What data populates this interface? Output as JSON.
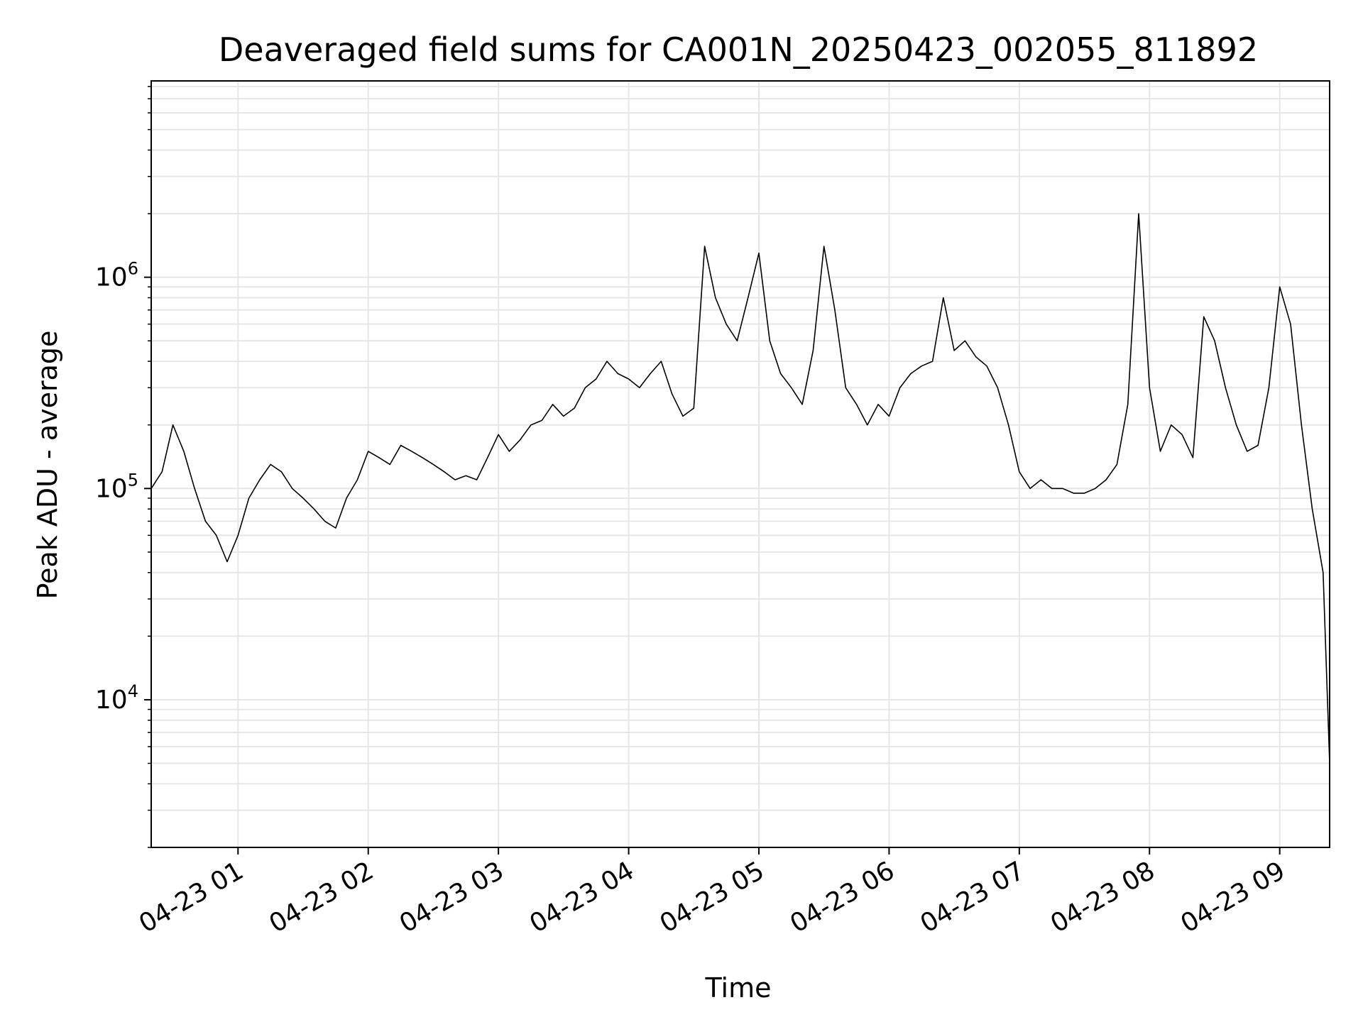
{
  "chart_data": {
    "type": "line",
    "title": "Deaveraged field sums for CA001N_20250423_002055_811892",
    "xlabel": "Time",
    "ylabel": "Peak ADU - average",
    "x_scale": "time",
    "y_scale": "log",
    "xlim": [
      "2025-04-23 00:20",
      "2025-04-23 09:23"
    ],
    "ylim": [
      2000,
      8500000
    ],
    "grid": true,
    "grid_minor": true,
    "line_color": "#000000",
    "grid_color": "#e6e6e6",
    "x_ticks": [
      {
        "value": "2025-04-23 01:00",
        "label": "04-23 01"
      },
      {
        "value": "2025-04-23 02:00",
        "label": "04-23 02"
      },
      {
        "value": "2025-04-23 03:00",
        "label": "04-23 03"
      },
      {
        "value": "2025-04-23 04:00",
        "label": "04-23 04"
      },
      {
        "value": "2025-04-23 05:00",
        "label": "04-23 05"
      },
      {
        "value": "2025-04-23 06:00",
        "label": "04-23 06"
      },
      {
        "value": "2025-04-23 07:00",
        "label": "04-23 07"
      },
      {
        "value": "2025-04-23 08:00",
        "label": "04-23 08"
      },
      {
        "value": "2025-04-23 09:00",
        "label": "04-23 09"
      }
    ],
    "y_ticks": [
      {
        "value": 10000,
        "base": "10",
        "exp": "4"
      },
      {
        "value": 100000,
        "base": "10",
        "exp": "5"
      },
      {
        "value": 1000000,
        "base": "10",
        "exp": "6"
      }
    ],
    "series": [
      {
        "x": [
          "2025-04-23 00:20",
          "2025-04-23 00:25",
          "2025-04-23 00:30",
          "2025-04-23 00:35",
          "2025-04-23 00:40",
          "2025-04-23 00:45",
          "2025-04-23 00:50",
          "2025-04-23 00:55",
          "2025-04-23 01:00",
          "2025-04-23 01:05",
          "2025-04-23 01:10",
          "2025-04-23 01:15",
          "2025-04-23 01:20",
          "2025-04-23 01:25",
          "2025-04-23 01:30",
          "2025-04-23 01:35",
          "2025-04-23 01:40",
          "2025-04-23 01:45",
          "2025-04-23 01:50",
          "2025-04-23 01:55",
          "2025-04-23 02:00",
          "2025-04-23 02:05",
          "2025-04-23 02:10",
          "2025-04-23 02:15",
          "2025-04-23 02:20",
          "2025-04-23 02:25",
          "2025-04-23 02:30",
          "2025-04-23 02:35",
          "2025-04-23 02:40",
          "2025-04-23 02:45",
          "2025-04-23 02:50",
          "2025-04-23 02:55",
          "2025-04-23 03:00",
          "2025-04-23 03:05",
          "2025-04-23 03:10",
          "2025-04-23 03:15",
          "2025-04-23 03:20",
          "2025-04-23 03:25",
          "2025-04-23 03:30",
          "2025-04-23 03:35",
          "2025-04-23 03:40",
          "2025-04-23 03:45",
          "2025-04-23 03:50",
          "2025-04-23 03:55",
          "2025-04-23 04:00",
          "2025-04-23 04:05",
          "2025-04-23 04:10",
          "2025-04-23 04:15",
          "2025-04-23 04:20",
          "2025-04-23 04:25",
          "2025-04-23 04:30",
          "2025-04-23 04:35",
          "2025-04-23 04:40",
          "2025-04-23 04:45",
          "2025-04-23 04:50",
          "2025-04-23 04:55",
          "2025-04-23 05:00",
          "2025-04-23 05:05",
          "2025-04-23 05:10",
          "2025-04-23 05:15",
          "2025-04-23 05:20",
          "2025-04-23 05:25",
          "2025-04-23 05:30",
          "2025-04-23 05:35",
          "2025-04-23 05:40",
          "2025-04-23 05:45",
          "2025-04-23 05:50",
          "2025-04-23 05:55",
          "2025-04-23 06:00",
          "2025-04-23 06:05",
          "2025-04-23 06:10",
          "2025-04-23 06:15",
          "2025-04-23 06:20",
          "2025-04-23 06:25",
          "2025-04-23 06:30",
          "2025-04-23 06:35",
          "2025-04-23 06:40",
          "2025-04-23 06:45",
          "2025-04-23 06:50",
          "2025-04-23 06:55",
          "2025-04-23 07:00",
          "2025-04-23 07:05",
          "2025-04-23 07:10",
          "2025-04-23 07:15",
          "2025-04-23 07:20",
          "2025-04-23 07:25",
          "2025-04-23 07:30",
          "2025-04-23 07:35",
          "2025-04-23 07:40",
          "2025-04-23 07:45",
          "2025-04-23 07:50",
          "2025-04-23 07:55",
          "2025-04-23 08:00",
          "2025-04-23 08:05",
          "2025-04-23 08:10",
          "2025-04-23 08:15",
          "2025-04-23 08:20",
          "2025-04-23 08:25",
          "2025-04-23 08:30",
          "2025-04-23 08:35",
          "2025-04-23 08:40",
          "2025-04-23 08:45",
          "2025-04-23 08:50",
          "2025-04-23 08:55",
          "2025-04-23 09:00",
          "2025-04-23 09:05",
          "2025-04-23 09:10",
          "2025-04-23 09:15",
          "2025-04-23 09:20",
          "2025-04-23 09:23"
        ],
        "y": [
          100000,
          120000,
          200000,
          150000,
          100000,
          70000,
          60000,
          45000,
          60000,
          90000,
          110000,
          130000,
          120000,
          100000,
          90000,
          80000,
          70000,
          65000,
          90000,
          110000,
          150000,
          140000,
          130000,
          160000,
          150000,
          140000,
          130000,
          120000,
          110000,
          115000,
          110000,
          140000,
          180000,
          150000,
          170000,
          200000,
          210000,
          250000,
          220000,
          240000,
          300000,
          330000,
          400000,
          350000,
          330000,
          300000,
          350000,
          400000,
          280000,
          220000,
          240000,
          1400000,
          800000,
          600000,
          500000,
          800000,
          1300000,
          500000,
          350000,
          300000,
          250000,
          450000,
          1400000,
          700000,
          300000,
          250000,
          200000,
          250000,
          220000,
          300000,
          350000,
          380000,
          400000,
          800000,
          450000,
          500000,
          420000,
          380000,
          300000,
          200000,
          120000,
          100000,
          110000,
          100000,
          100000,
          95000,
          95000,
          100000,
          110000,
          130000,
          250000,
          2000000,
          300000,
          150000,
          200000,
          180000,
          140000,
          650000,
          500000,
          300000,
          200000,
          150000,
          160000,
          300000,
          900000,
          600000,
          200000,
          80000,
          40000,
          5000
        ]
      }
    ]
  }
}
